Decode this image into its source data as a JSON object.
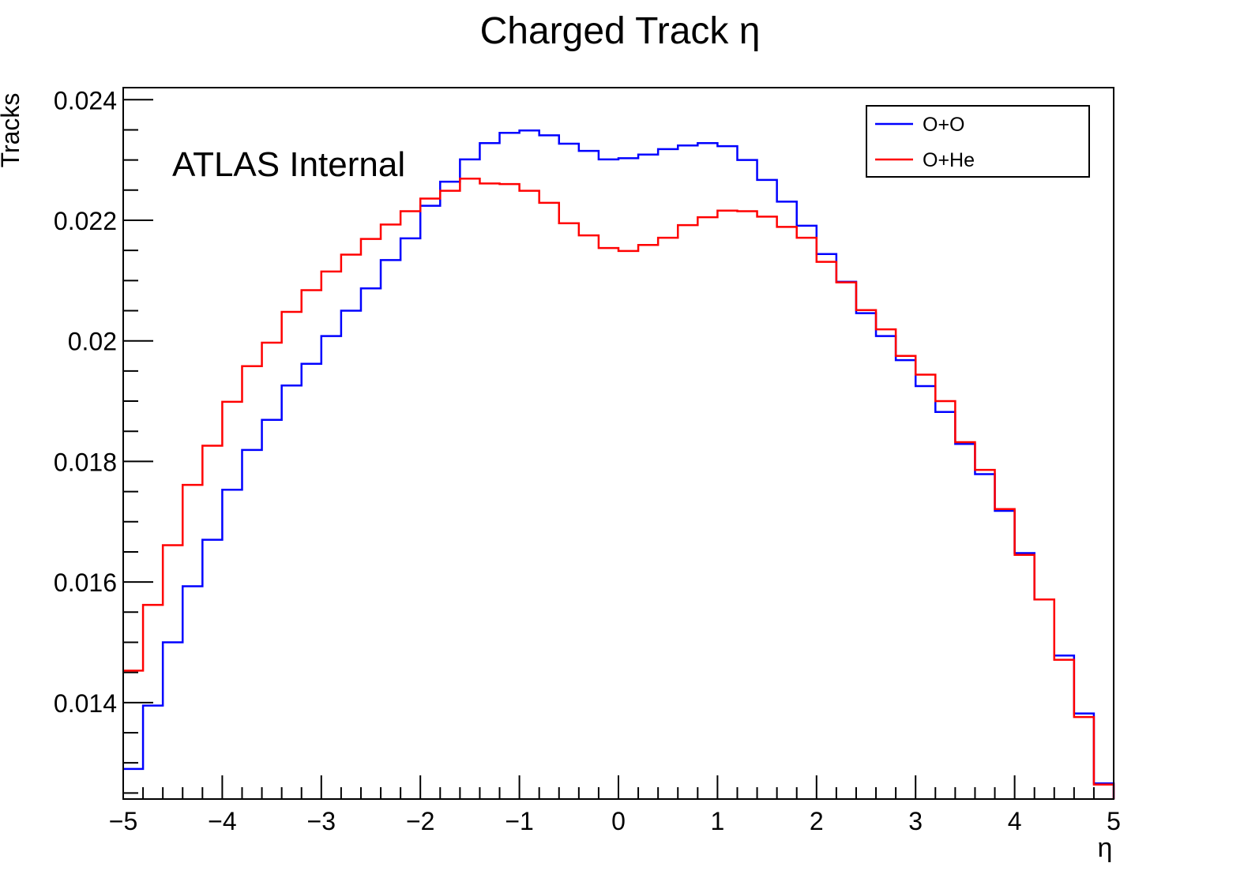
{
  "chart_data": {
    "type": "step",
    "title": "Charged Track η",
    "xlabel": "η",
    "ylabel": "Tracks",
    "annotation": "ATLAS Internal",
    "xlim": [
      -5,
      5
    ],
    "ylim": [
      0.0124,
      0.0242
    ],
    "x_ticks": [
      -5,
      -4,
      -3,
      -2,
      -1,
      0,
      1,
      2,
      3,
      4,
      5
    ],
    "x_tick_labels": [
      "−5",
      "−4",
      "−3",
      "−2",
      "−1",
      "0",
      "1",
      "2",
      "3",
      "4",
      "5"
    ],
    "y_ticks": [
      0.014,
      0.016,
      0.018,
      0.02,
      0.022,
      0.024
    ],
    "y_tick_labels": [
      "0.014",
      "0.016",
      "0.018",
      "0.02",
      "0.022",
      "0.024"
    ],
    "grid": false,
    "legend_position": "top-right",
    "bin_edges": [
      -5,
      -4.8,
      -4.6,
      -4.4,
      -4.2,
      -4,
      -3.8,
      -3.6,
      -3.4,
      -3.2,
      -3,
      -2.8,
      -2.6,
      -2.4,
      -2.2,
      -2,
      -1.8,
      -1.6,
      -1.4,
      -1.2,
      -1,
      -0.8,
      -0.6,
      -0.4,
      -0.2,
      0,
      0.2,
      0.4,
      0.6,
      0.8,
      1,
      1.2,
      1.4,
      1.6,
      1.8,
      2,
      2.2,
      2.4,
      2.6,
      2.8,
      3,
      3.2,
      3.4,
      3.6,
      3.8,
      4,
      4.2,
      4.4,
      4.6,
      4.8,
      5
    ],
    "series": [
      {
        "name": "O+O",
        "color": "#0000ff",
        "values": [
          0.0129,
          0.01395,
          0.015,
          0.01593,
          0.0167,
          0.01753,
          0.01819,
          0.01869,
          0.01926,
          0.01962,
          0.02008,
          0.0205,
          0.02087,
          0.02134,
          0.0217,
          0.02224,
          0.02264,
          0.02301,
          0.02328,
          0.02345,
          0.02349,
          0.02341,
          0.02327,
          0.02315,
          0.02301,
          0.02303,
          0.02309,
          0.02318,
          0.02324,
          0.02328,
          0.02323,
          0.023,
          0.02267,
          0.02231,
          0.02191,
          0.02144,
          0.02098,
          0.02046,
          0.02008,
          0.01968,
          0.01925,
          0.01882,
          0.01829,
          0.01779,
          0.01718,
          0.01648,
          0.01571,
          0.01478,
          0.01382,
          0.01266
        ]
      },
      {
        "name": "O+He",
        "color": "#ff0000",
        "values": [
          0.01453,
          0.01562,
          0.01661,
          0.01761,
          0.01826,
          0.01899,
          0.01958,
          0.01997,
          0.02048,
          0.02084,
          0.02115,
          0.02143,
          0.02169,
          0.02193,
          0.02215,
          0.02236,
          0.02249,
          0.02269,
          0.02261,
          0.0226,
          0.02249,
          0.02229,
          0.02195,
          0.02175,
          0.02154,
          0.02149,
          0.02159,
          0.02171,
          0.02192,
          0.02205,
          0.02216,
          0.02215,
          0.02206,
          0.02189,
          0.02171,
          0.02131,
          0.02097,
          0.02051,
          0.02019,
          0.01975,
          0.01944,
          0.019,
          0.01832,
          0.01786,
          0.01721,
          0.01645,
          0.01571,
          0.01471,
          0.01376,
          0.01264
        ]
      }
    ]
  }
}
